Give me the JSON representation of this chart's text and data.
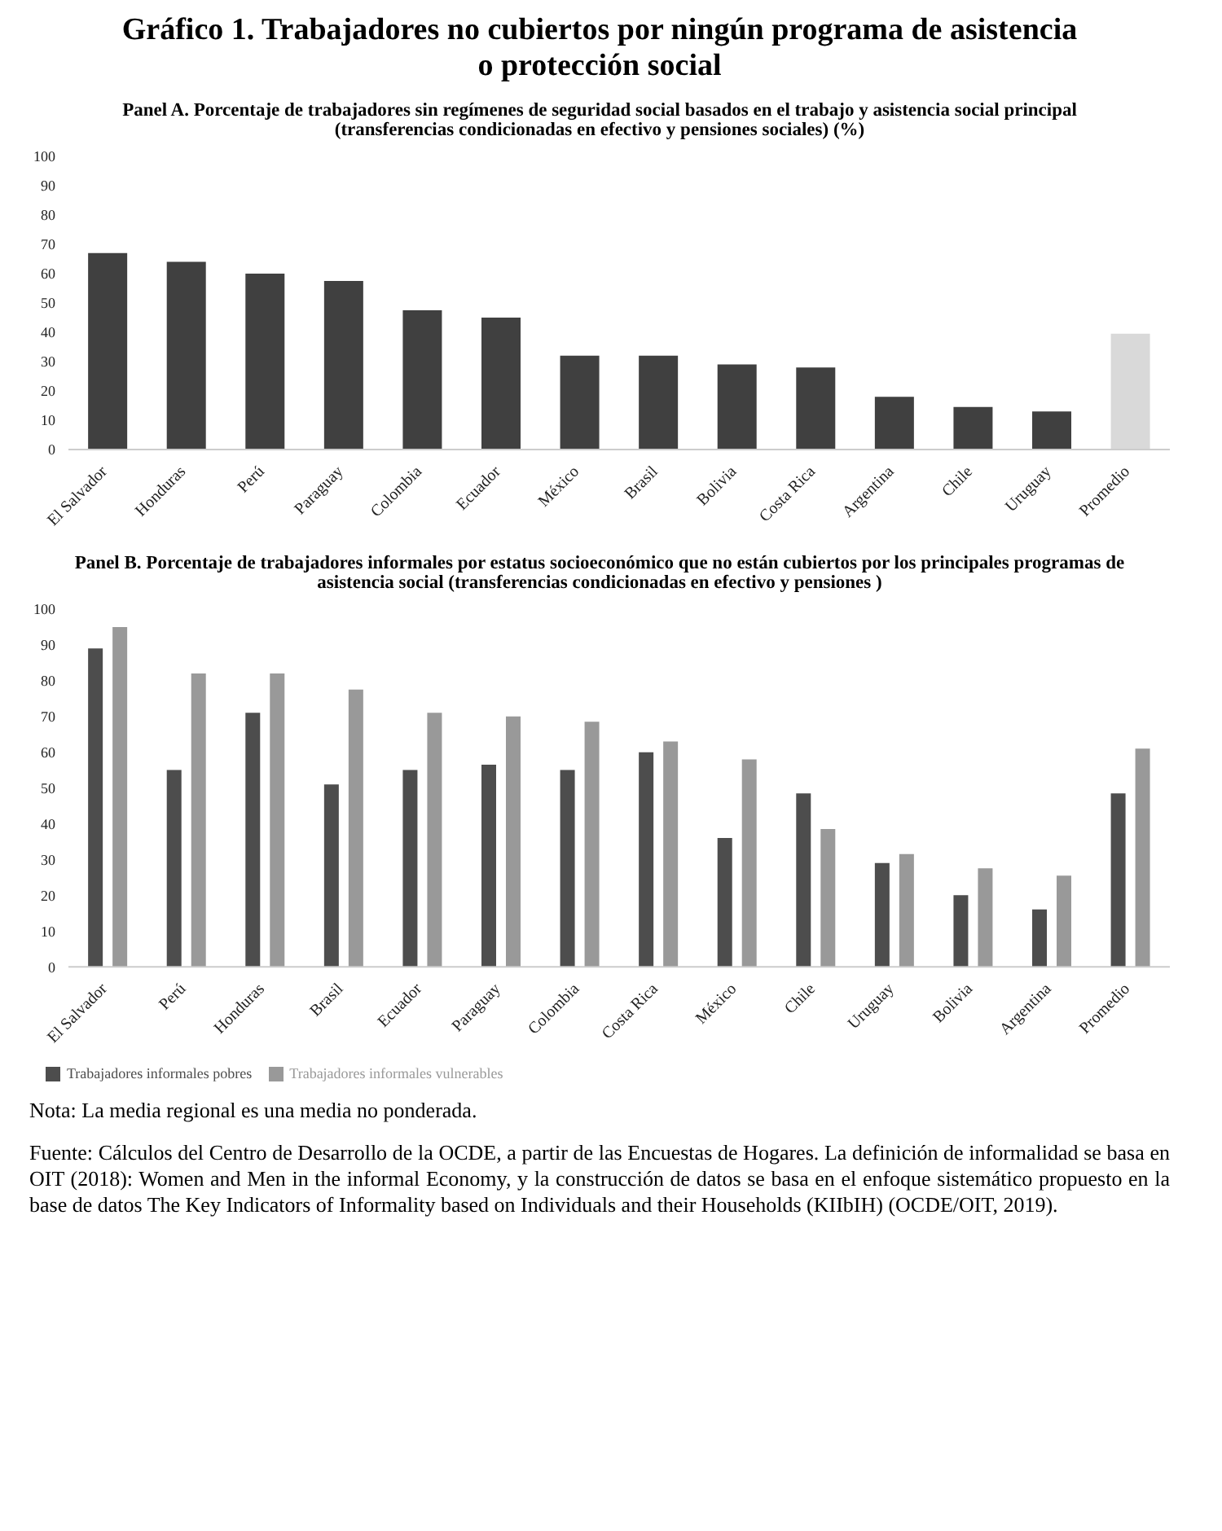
{
  "chart_data": [
    {
      "type": "bar",
      "title": "Gráfico 1. Trabajadores no cubiertos por ningún programa de asistencia o protección social",
      "subtitle": "Panel A. Porcentaje de trabajadores sin regímenes de seguridad social basados en el trabajo y asistencia social principal (transferencias condicionadas en efectivo y pensiones sociales) (%)",
      "categories": [
        "El Salvador",
        "Honduras",
        "Perú",
        "Paraguay",
        "Colombia",
        "Ecuador",
        "México",
        "Brasil",
        "Bolivia",
        "Costa Rica",
        "Argentina",
        "Chile",
        "Uruguay",
        "Promedio"
      ],
      "values": [
        67,
        64,
        60,
        57.5,
        47.5,
        45,
        32,
        32,
        29,
        28,
        18,
        14.5,
        13,
        39.5
      ],
      "colors": [
        "#404040",
        "#404040",
        "#404040",
        "#404040",
        "#404040",
        "#404040",
        "#404040",
        "#404040",
        "#404040",
        "#404040",
        "#404040",
        "#404040",
        "#404040",
        "#d9d9d9"
      ],
      "ylim": [
        0,
        100
      ],
      "yticks": [
        0,
        10,
        20,
        30,
        40,
        50,
        60,
        70,
        80,
        90,
        100
      ],
      "grid": false,
      "legend": false
    },
    {
      "type": "bar",
      "subtitle": "Panel B. Porcentaje de trabajadores informales por estatus socioeconómico que no están cubiertos por los principales programas de asistencia social (transferencias condicionadas en efectivo y pensiones )",
      "categories": [
        "El Salvador",
        "Perú",
        "Honduras",
        "Brasil",
        "Ecuador",
        "Paraguay",
        "Colombia",
        "Costa Rica",
        "México",
        "Chile",
        "Uruguay",
        "Bolivia",
        "Argentina",
        "Promedio"
      ],
      "series": [
        {
          "name": "Trabajadores informales pobres",
          "color": "#4d4d4d",
          "values": [
            89,
            55,
            71,
            51,
            55,
            56.5,
            55,
            60,
            36,
            48.5,
            29,
            20,
            16,
            48.5
          ]
        },
        {
          "name": "Trabajadores informales vulnerables",
          "color": "#999999",
          "values": [
            95,
            82,
            82,
            77.5,
            71,
            70,
            68.5,
            63,
            58,
            38.5,
            31.5,
            27.5,
            25.5,
            61
          ]
        }
      ],
      "ylim": [
        0,
        100
      ],
      "yticks": [
        0,
        10,
        20,
        30,
        40,
        50,
        60,
        70,
        80,
        90,
        100
      ],
      "grid": false,
      "legend": "bottom left",
      "annotations": [
        "Nota: La media regional es una media no ponderada.",
        "Fuente: Cálculos del Centro de Desarrollo de la OCDE, a partir de las Encuestas de Hogares. La definición de informalidad se basa en OIT (2018): Women and Men in the informal Economy, y la construcción de datos se basa en el enfoque sistemático propuesto en la base de datos The Key Indicators of Informality based on Individuals and their Households (KIIbIH) (OCDE/OIT, 2019)."
      ]
    }
  ]
}
